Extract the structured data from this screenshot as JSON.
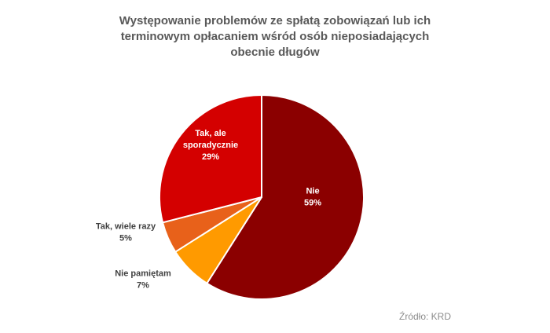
{
  "chart_data": {
    "type": "pie",
    "title_lines": [
      "Występowanie problemów ze spłatą zobowiązań lub ich",
      "terminowym opłacaniem wśród osób nieposiadających",
      "obecnie długów"
    ],
    "slices": [
      {
        "label_lines": [
          "Nie"
        ],
        "value": 59,
        "value_label": "59%",
        "color": "#8b0000",
        "label_color": "#ffffff"
      },
      {
        "label_lines": [
          "Nie pamiętam"
        ],
        "value": 7,
        "value_label": "7%",
        "color": "#ff9a00",
        "label_color": "#404040"
      },
      {
        "label_lines": [
          "Tak, wiele razy"
        ],
        "value": 5,
        "value_label": "5%",
        "color": "#e8611a",
        "label_color": "#404040"
      },
      {
        "label_lines": [
          "Tak, ale",
          "sporadycznie"
        ],
        "value": 29,
        "value_label": "29%",
        "color": "#d40000",
        "label_color": "#ffffff"
      }
    ],
    "start_angle_deg": 0,
    "direction": "clockwise",
    "legend": "none"
  },
  "source": "Źródło: KRD"
}
